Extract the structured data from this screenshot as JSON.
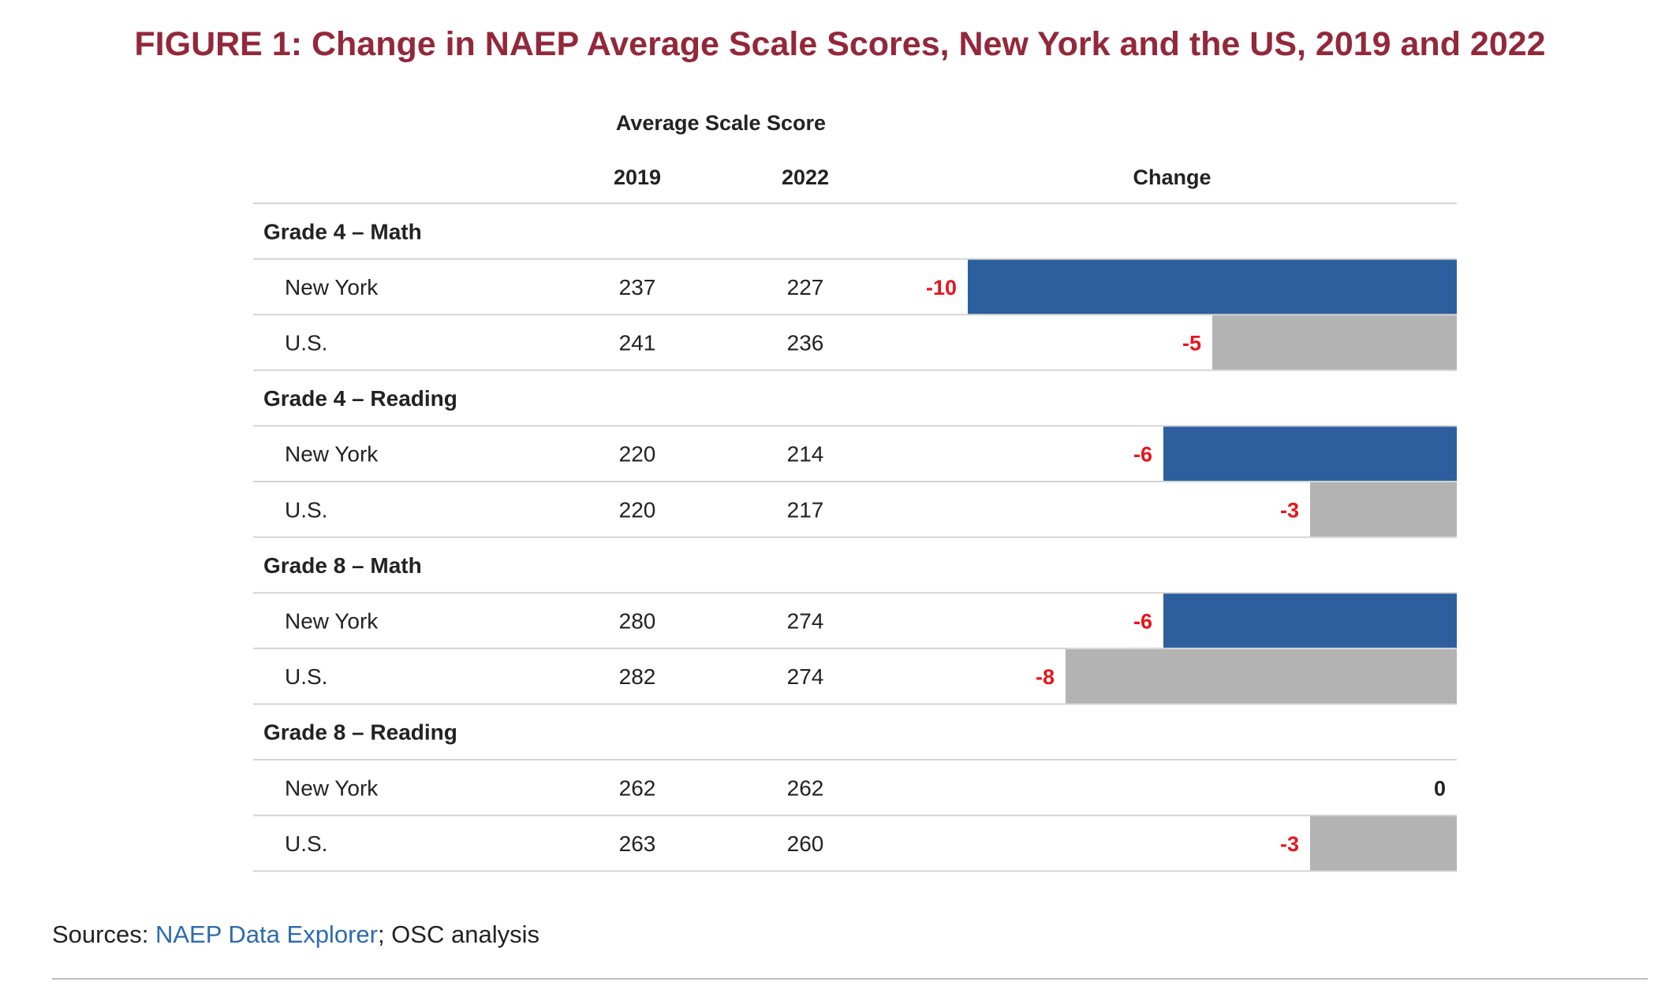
{
  "chart_data": {
    "type": "bar",
    "title": "FIGURE 1: Change in NAEP Average Scale Scores, New York and the US, 2019 and 2022",
    "column_group_header": "Average Scale Score",
    "column_headers": [
      "2019",
      "2022",
      "Change"
    ],
    "groups": [
      {
        "label": "Grade 4 – Math",
        "rows": [
          {
            "label": "New York",
            "score_2019": 237,
            "score_2022": 227,
            "change": "-10",
            "change_value": -10
          },
          {
            "label": "U.S.",
            "score_2019": 241,
            "score_2022": 236,
            "change": "-5",
            "change_value": -5
          }
        ]
      },
      {
        "label": "Grade 4 – Reading",
        "rows": [
          {
            "label": "New York",
            "score_2019": 220,
            "score_2022": 214,
            "change": "-6",
            "change_value": -6
          },
          {
            "label": "U.S.",
            "score_2019": 220,
            "score_2022": 217,
            "change": "-3",
            "change_value": -3
          }
        ]
      },
      {
        "label": "Grade 8 – Math",
        "rows": [
          {
            "label": "New York",
            "score_2019": 280,
            "score_2022": 274,
            "change": "-6",
            "change_value": -6
          },
          {
            "label": "U.S.",
            "score_2019": 282,
            "score_2022": 274,
            "change": "-8",
            "change_value": -8
          }
        ]
      },
      {
        "label": "Grade 8 – Reading",
        "rows": [
          {
            "label": "New York",
            "score_2019": 262,
            "score_2022": 262,
            "change": "0",
            "change_value": 0
          },
          {
            "label": "U.S.",
            "score_2019": 263,
            "score_2022": 260,
            "change": "-3",
            "change_value": -3
          }
        ]
      }
    ],
    "xlim": [
      -10,
      0
    ],
    "colors": {
      "new_york_bar": "#2d5f9e",
      "us_bar": "#b3b3b3",
      "negative_label": "#e8141a",
      "zero_label": "#222222",
      "title": "#93283a",
      "link": "#2c6aae"
    }
  },
  "sources": {
    "prefix": "Sources: ",
    "link_text": "NAEP Data Explorer",
    "suffix": "; OSC analysis"
  }
}
